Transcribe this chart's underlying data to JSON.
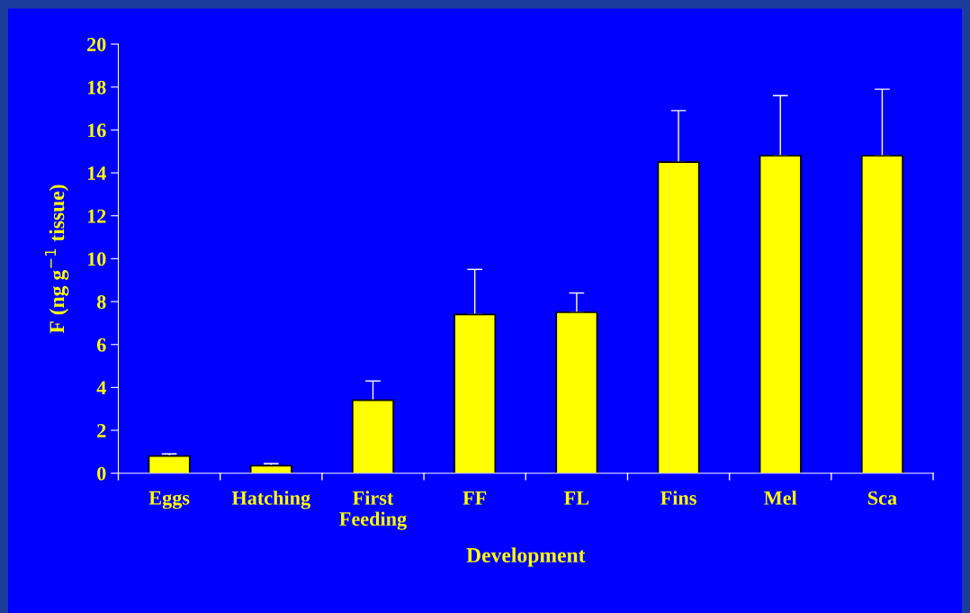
{
  "chart_data": {
    "type": "bar",
    "xlabel": "Development",
    "ylabel": "F (ng g$^{−1}$ tissue)",
    "categories": [
      "Eggs",
      "Hatching",
      "First\nFeeding",
      "FF",
      "FL",
      "Fins",
      "Mel",
      "Sca"
    ],
    "values": [
      0.8,
      0.35,
      3.4,
      7.4,
      7.5,
      14.5,
      14.8,
      14.8
    ],
    "errors": [
      [
        0.8,
        0.9
      ],
      [
        0.35,
        0.45
      ],
      [
        3.4,
        4.3
      ],
      [
        7.4,
        9.5
      ],
      [
        7.5,
        8.4
      ],
      [
        14.5,
        16.9
      ],
      [
        14.8,
        17.6
      ],
      [
        14.8,
        17.9
      ]
    ],
    "color": "#ffff00",
    "ylim": [
      0,
      20
    ],
    "yticks": [
      0,
      2,
      4,
      6,
      8,
      10,
      12,
      14,
      16,
      18,
      20
    ],
    "grid": false,
    "legend": false
  }
}
